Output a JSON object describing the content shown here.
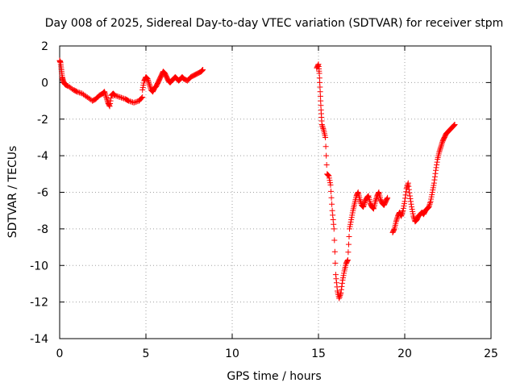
{
  "chart_data": {
    "type": "scatter",
    "title": "Day 008 of 2025, Sidereal Day-to-day VTEC variation (SDTVAR) for receiver stpm",
    "xlabel": "GPS time / hours",
    "ylabel": "SDTVAR / TECUs",
    "xlim": [
      0,
      25
    ],
    "ylim": [
      -14,
      2
    ],
    "xticks": [
      0,
      5,
      10,
      15,
      20,
      25
    ],
    "yticks": [
      -14,
      -12,
      -10,
      -8,
      -6,
      -4,
      -2,
      0,
      2
    ],
    "grid": true,
    "legend": "none",
    "marker": "plus",
    "color": "#ff0000",
    "series": [
      {
        "x": [
          0.0,
          0.05,
          0.1,
          0.15,
          0.2,
          0.3,
          0.5,
          0.8,
          1.0,
          1.3,
          1.6,
          1.9,
          2.1,
          2.3,
          2.5,
          2.6,
          2.7,
          2.8,
          2.9,
          3.0,
          3.1,
          3.2,
          3.5,
          3.8,
          4.0,
          4.3,
          4.6,
          4.8
        ],
        "y": [
          1.2,
          1.1,
          0.7,
          0.3,
          0.1,
          -0.1,
          -0.2,
          -0.4,
          -0.5,
          -0.6,
          -0.8,
          -1.0,
          -0.9,
          -0.7,
          -0.6,
          -0.5,
          -0.8,
          -1.1,
          -1.3,
          -0.7,
          -0.6,
          -0.7,
          -0.8,
          -0.9,
          -1.0,
          -1.1,
          -1.0,
          -0.8
        ]
      },
      {
        "x": [
          4.8,
          4.9,
          5.0,
          5.1,
          5.2,
          5.3,
          5.4,
          5.5,
          5.6,
          5.7,
          5.8,
          5.9,
          6.0,
          6.1,
          6.2,
          6.3,
          6.4,
          6.5,
          6.6,
          6.7,
          6.8,
          6.9,
          7.0,
          7.1,
          7.2,
          7.4,
          7.6,
          7.8,
          8.0,
          8.2,
          8.3
        ],
        "y": [
          -0.4,
          0.1,
          0.3,
          0.2,
          -0.1,
          -0.4,
          -0.5,
          -0.3,
          -0.2,
          0.0,
          0.2,
          0.4,
          0.6,
          0.5,
          0.3,
          0.1,
          0.0,
          0.1,
          0.2,
          0.3,
          0.2,
          0.1,
          0.2,
          0.3,
          0.2,
          0.1,
          0.3,
          0.4,
          0.5,
          0.6,
          0.7
        ]
      },
      {
        "x": [
          14.9,
          15.0,
          15.05,
          15.1,
          15.15,
          15.2,
          15.3,
          15.4,
          15.5,
          15.6,
          15.7,
          15.8,
          15.9,
          16.0,
          16.1,
          16.2,
          16.3,
          16.4,
          16.5,
          16.6,
          16.7,
          16.8,
          16.9,
          17.0,
          17.1,
          17.2,
          17.3,
          17.4,
          17.5,
          17.6,
          17.7,
          17.8,
          17.9,
          18.0,
          18.1,
          18.2,
          18.3,
          18.4,
          18.5,
          18.6,
          18.7,
          18.8,
          18.9,
          19.0
        ],
        "y": [
          0.8,
          1.0,
          0.5,
          -0.5,
          -1.5,
          -2.3,
          -2.6,
          -3.0,
          -5.0,
          -5.1,
          -5.6,
          -7.0,
          -8.0,
          -10.5,
          -11.4,
          -11.8,
          -11.5,
          -10.8,
          -10.3,
          -9.9,
          -9.7,
          -8.0,
          -7.5,
          -7.0,
          -6.6,
          -6.2,
          -6.0,
          -6.4,
          -6.7,
          -6.8,
          -6.5,
          -6.3,
          -6.2,
          -6.6,
          -6.8,
          -6.9,
          -6.5,
          -6.2,
          -6.0,
          -6.4,
          -6.6,
          -6.7,
          -6.5,
          -6.3
        ]
      },
      {
        "x": [
          19.3,
          19.4,
          19.5,
          19.6,
          19.7,
          19.8,
          19.9,
          20.0,
          20.1,
          20.2,
          20.3,
          20.4,
          20.5,
          20.6,
          20.7,
          20.8,
          20.9,
          21.0,
          21.1,
          21.2,
          21.3,
          21.4,
          21.5,
          21.6,
          21.7,
          21.8,
          21.9,
          22.0,
          22.1,
          22.2,
          22.3,
          22.4,
          22.5,
          22.6,
          22.7,
          22.8,
          22.9
        ],
        "y": [
          -8.2,
          -8.0,
          -7.6,
          -7.3,
          -7.1,
          -7.3,
          -7.0,
          -6.5,
          -5.8,
          -5.5,
          -6.2,
          -6.8,
          -7.3,
          -7.6,
          -7.5,
          -7.3,
          -7.2,
          -7.1,
          -7.2,
          -7.0,
          -6.9,
          -6.8,
          -6.5,
          -6.0,
          -5.5,
          -4.8,
          -4.2,
          -3.8,
          -3.5,
          -3.2,
          -3.0,
          -2.8,
          -2.7,
          -2.6,
          -2.5,
          -2.4,
          -2.3
        ]
      }
    ]
  }
}
